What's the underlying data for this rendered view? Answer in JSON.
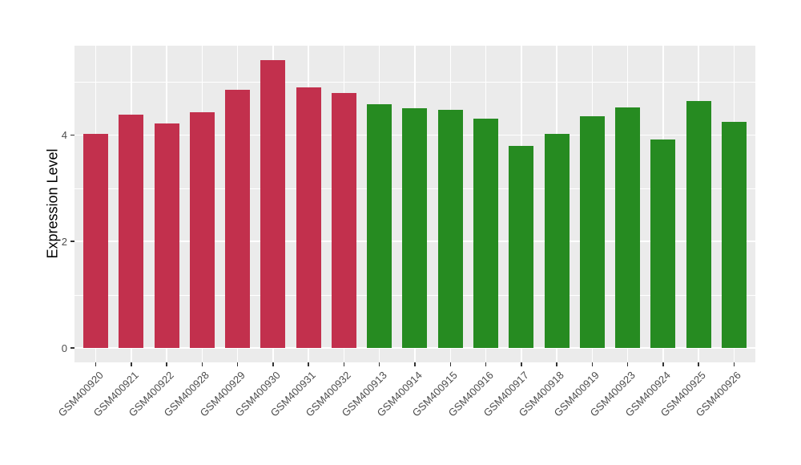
{
  "chart_data": {
    "type": "bar",
    "title": "",
    "xlabel": "",
    "ylabel": "Expression Level",
    "y_ticks": [
      0,
      2,
      4
    ],
    "y_minor_gridlines": [
      1,
      3,
      5
    ],
    "ylim_displayed": [
      -0.27,
      5.68
    ],
    "grid": "on",
    "legend_position": "none",
    "panel_background": "#EBEBEB",
    "gridline_color": "#FFFFFF",
    "tick_color": "#333333",
    "group_colors": {
      "left_group": "#C2304D",
      "right_group": "#268B21"
    },
    "categories": [
      "GSM400920",
      "GSM400921",
      "GSM400922",
      "GSM400928",
      "GSM400929",
      "GSM400930",
      "GSM400931",
      "GSM400932",
      "GSM400913",
      "GSM400914",
      "GSM400915",
      "GSM400916",
      "GSM400917",
      "GSM400918",
      "GSM400919",
      "GSM400923",
      "GSM400924",
      "GSM400925",
      "GSM400926"
    ],
    "values": [
      4.02,
      4.38,
      4.21,
      4.43,
      4.85,
      5.41,
      4.89,
      4.78,
      4.58,
      4.5,
      4.47,
      4.3,
      3.8,
      4.02,
      4.35,
      4.51,
      3.91,
      4.64,
      4.24
    ],
    "bar_colors": [
      "#C2304D",
      "#C2304D",
      "#C2304D",
      "#C2304D",
      "#C2304D",
      "#C2304D",
      "#C2304D",
      "#C2304D",
      "#268B21",
      "#268B21",
      "#268B21",
      "#268B21",
      "#268B21",
      "#268B21",
      "#268B21",
      "#268B21",
      "#268B21",
      "#268B21",
      "#268B21"
    ]
  }
}
